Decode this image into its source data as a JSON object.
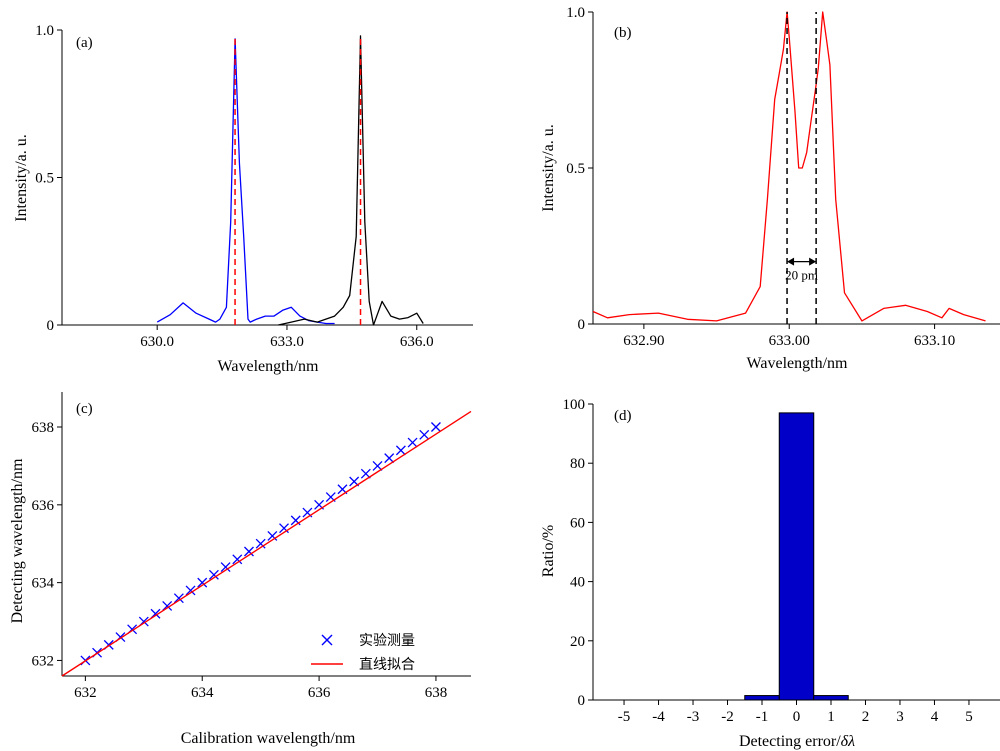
{
  "chart_data": [
    {
      "panel": "(a)",
      "type": "line",
      "xlabel": "Wavelength/nm",
      "ylabel": "Intensity/a. u.",
      "xlim": [
        627.8,
        637.3
      ],
      "ylim": [
        0,
        1.0
      ],
      "xticks": [
        630.0,
        633.0,
        636.0
      ],
      "xtick_labels": [
        "630.0",
        "633.0",
        "636.0"
      ],
      "yticks": [
        0,
        0.5,
        1.0
      ],
      "ytick_labels": [
        "0",
        "0.5",
        "1.0"
      ],
      "series": [
        {
          "color": "#0000ff",
          "x": [
            630.0,
            630.3,
            630.6,
            630.9,
            631.2,
            631.35,
            631.45,
            631.6,
            631.7,
            631.8,
            631.9,
            632.0,
            632.1,
            632.15,
            632.3,
            632.5,
            632.7,
            632.9,
            633.1,
            633.3,
            633.5,
            633.7,
            633.9,
            634.1
          ],
          "y": [
            0.01,
            0.035,
            0.075,
            0.04,
            0.02,
            0.01,
            0.02,
            0.06,
            0.35,
            0.97,
            0.55,
            0.3,
            0.02,
            0.01,
            0.02,
            0.03,
            0.03,
            0.05,
            0.06,
            0.03,
            0.015,
            0.01,
            0.005,
            0.005
          ]
        },
        {
          "color": "#000000",
          "x": [
            632.8,
            633.1,
            633.4,
            633.7,
            633.9,
            634.1,
            634.3,
            634.45,
            634.6,
            634.7,
            634.8,
            634.9,
            635.0,
            635.1,
            635.2,
            635.4,
            635.6,
            635.8,
            636.0,
            636.15
          ],
          "y": [
            0.0,
            0.01,
            0.02,
            0.01,
            0.02,
            0.03,
            0.06,
            0.1,
            0.3,
            0.98,
            0.35,
            0.08,
            0.0,
            0.04,
            0.08,
            0.03,
            0.02,
            0.025,
            0.04,
            0.005
          ]
        }
      ],
      "annotations": [
        {
          "type": "vline-dashed",
          "x": 631.8,
          "y_top": 0.97,
          "color": "#ff0000"
        },
        {
          "type": "vline-dashed",
          "x": 634.7,
          "y_top": 0.97,
          "color": "#ff0000"
        }
      ]
    },
    {
      "panel": "(b)",
      "type": "line",
      "xlabel": "Wavelength/nm",
      "ylabel": "Intensity/a. u.",
      "xlim": [
        632.865,
        633.145
      ],
      "ylim": [
        0,
        1.0
      ],
      "xticks": [
        632.9,
        633.0,
        633.1
      ],
      "xtick_labels": [
        "632.90",
        "633.00",
        "633.10"
      ],
      "yticks": [
        0,
        0.5,
        1.0
      ],
      "ytick_labels": [
        "0",
        "0.5",
        "1.0"
      ],
      "series": [
        {
          "color": "#ff0000",
          "x": [
            632.865,
            632.875,
            632.89,
            632.91,
            632.93,
            632.95,
            632.97,
            632.98,
            632.985,
            632.99,
            632.993,
            632.996,
            632.9985,
            633.0,
            633.002,
            633.004,
            633.0065,
            633.009,
            633.012,
            633.015,
            633.018,
            633.02,
            633.023,
            633.026,
            633.028,
            633.032,
            633.038,
            633.05,
            633.065,
            633.08,
            633.095,
            633.105,
            633.11,
            633.12,
            633.135
          ],
          "y": [
            0.04,
            0.02,
            0.03,
            0.035,
            0.015,
            0.01,
            0.035,
            0.12,
            0.4,
            0.72,
            0.8,
            0.88,
            1.0,
            0.92,
            0.8,
            0.68,
            0.5,
            0.5,
            0.55,
            0.65,
            0.75,
            0.82,
            1.0,
            0.9,
            0.83,
            0.4,
            0.1,
            0.01,
            0.05,
            0.06,
            0.04,
            0.02,
            0.05,
            0.03,
            0.01
          ]
        }
      ],
      "annotations": [
        {
          "type": "vline-dashed",
          "x": 632.9985,
          "color": "#000000"
        },
        {
          "type": "vline-dashed",
          "x": 633.0185,
          "color": "#000000"
        },
        {
          "type": "double-arrow",
          "x1": 632.9985,
          "x2": 633.0185,
          "y": 0.2,
          "label": "20 pm"
        }
      ]
    },
    {
      "panel": "(c)",
      "type": "scatter",
      "xlabel": "Calibration wavelength/nm",
      "ylabel": "Detecting wavelength/nm",
      "xlim": [
        631.6,
        638.6
      ],
      "ylim": [
        631.6,
        638.9
      ],
      "xticks": [
        632,
        634,
        636,
        638
      ],
      "xtick_labels": [
        "632",
        "634",
        "636",
        "638"
      ],
      "yticks": [
        632,
        634,
        636,
        638
      ],
      "ytick_labels": [
        "632",
        "634",
        "636",
        "638"
      ],
      "legend": {
        "position": "lower-right",
        "entries": [
          "实验测量",
          "直线拟合"
        ]
      },
      "series": [
        {
          "name": "实验测量",
          "marker": "x",
          "color": "#0000ff",
          "x_start": 632.0,
          "x_end": 638.0,
          "x_step": 0.2
        },
        {
          "name": "直线拟合",
          "style": "line",
          "color": "#ff0000",
          "x": [
            631.6,
            638.6
          ],
          "y": [
            631.6,
            638.4
          ]
        }
      ]
    },
    {
      "panel": "(d)",
      "type": "bar",
      "xlabel": "Detecting error/",
      "xlabel_symbol": "δλ",
      "ylabel": "Ratio/%",
      "xlim": [
        -5.9,
        5.9
      ],
      "ylim": [
        0,
        100
      ],
      "xticks": [
        -5,
        -4,
        -3,
        -2,
        -1,
        0,
        1,
        2,
        3,
        4,
        5
      ],
      "xtick_labels": [
        "-5",
        "-4",
        "-3",
        "-2",
        "-1",
        "0",
        "1",
        "2",
        "3",
        "4",
        "5"
      ],
      "yticks": [
        0,
        20,
        40,
        60,
        80,
        100
      ],
      "ytick_labels": [
        "0",
        "20",
        "40",
        "60",
        "80",
        "100"
      ],
      "categories": [
        -1,
        0,
        1
      ],
      "values": [
        1.5,
        97,
        1.5
      ],
      "bar_color": "#0000c8"
    }
  ]
}
